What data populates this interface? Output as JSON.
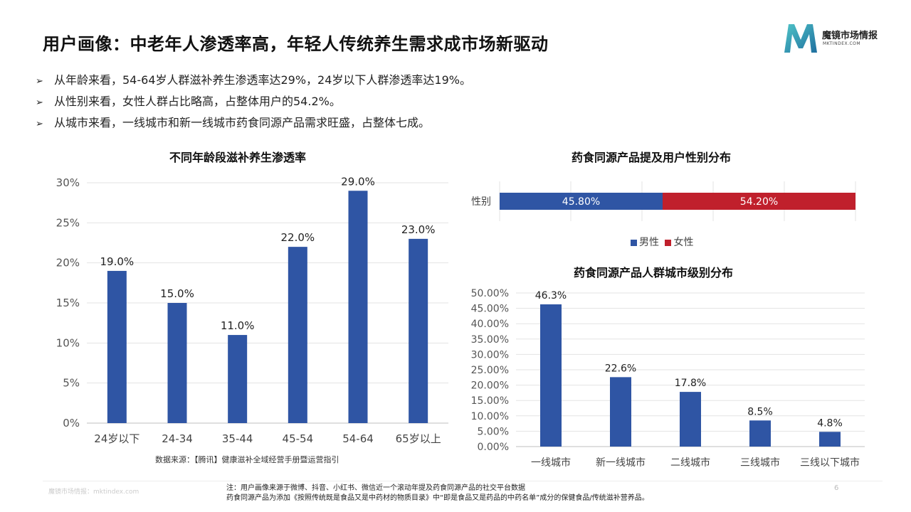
{
  "title": "用户画像：中老年人渗透率高，年轻人传统养生需求成市场新驱动",
  "logo": {
    "name": "魔镜市场情报",
    "sub": "MKTINDEX.COM"
  },
  "bullets": [
    "从年龄来看，54-64岁人群滋补养生渗透率达29%，24岁以下人群渗透率达19%。",
    "从性别来看，女性人群占比略高，占整体用户的54.2%。",
    "从城市来看，一线城市和新一线城市药食同源产品需求旺盛，占整体七成。"
  ],
  "colors": {
    "blue": "#2f55a4",
    "red": "#c0202c"
  },
  "chart_data": [
    {
      "type": "bar",
      "title": "不同年龄段滋补养生渗透率",
      "categories": [
        "24岁以下",
        "24-34",
        "35-44",
        "45-54",
        "54-64",
        "65岁以上"
      ],
      "values": [
        19.0,
        15.0,
        11.0,
        22.0,
        29.0,
        23.0
      ],
      "value_labels": [
        "19.0%",
        "15.0%",
        "11.0%",
        "22.0%",
        "29.0%",
        "23.0%"
      ],
      "yticks": [
        "0%",
        "5%",
        "10%",
        "15%",
        "20%",
        "25%",
        "30%"
      ],
      "ylim": [
        0,
        30
      ],
      "grid": true
    },
    {
      "type": "bar",
      "orientation": "horizontal-stacked",
      "title": "药食同源产品提及用户性别分布",
      "categories": [
        "性别"
      ],
      "series": [
        {
          "name": "男性",
          "values": [
            45.8
          ],
          "label": "45.80%",
          "color": "#2f55a4"
        },
        {
          "name": "女性",
          "values": [
            54.2
          ],
          "label": "54.20%",
          "color": "#c0202c"
        }
      ],
      "legend": "bottom",
      "grid": true
    },
    {
      "type": "bar",
      "title": "药食同源产品人群城市级别分布",
      "categories": [
        "一线城市",
        "新一线城市",
        "二线城市",
        "三线城市",
        "三线以下城市"
      ],
      "values": [
        46.3,
        22.6,
        17.8,
        8.5,
        4.8
      ],
      "value_labels": [
        "46.3%",
        "22.6%",
        "17.8%",
        "8.5%",
        "4.8%"
      ],
      "yticks": [
        "0.00%",
        "5.00%",
        "10.00%",
        "15.00%",
        "20.00%",
        "25.00%",
        "30.00%",
        "35.00%",
        "40.00%",
        "45.00%",
        "50.00%"
      ],
      "ylim": [
        0,
        50
      ],
      "grid": true
    }
  ],
  "source": "数据来源：【腾讯】健康滋补全域经营手册暨运营指引",
  "footer": "魔镜市场情报：mktindex.com",
  "note": [
    "注：用户画像来源于微博、抖音、小红书、微信近一个滚动年提及药食同源产品的社交平台数据",
    "药食同源产品为添加《按照传统既是食品又是中药材的物质目录》中“即是食品又是药品的中药名单”成分的保健食品/传统滋补营养品。"
  ],
  "page_number": "6"
}
